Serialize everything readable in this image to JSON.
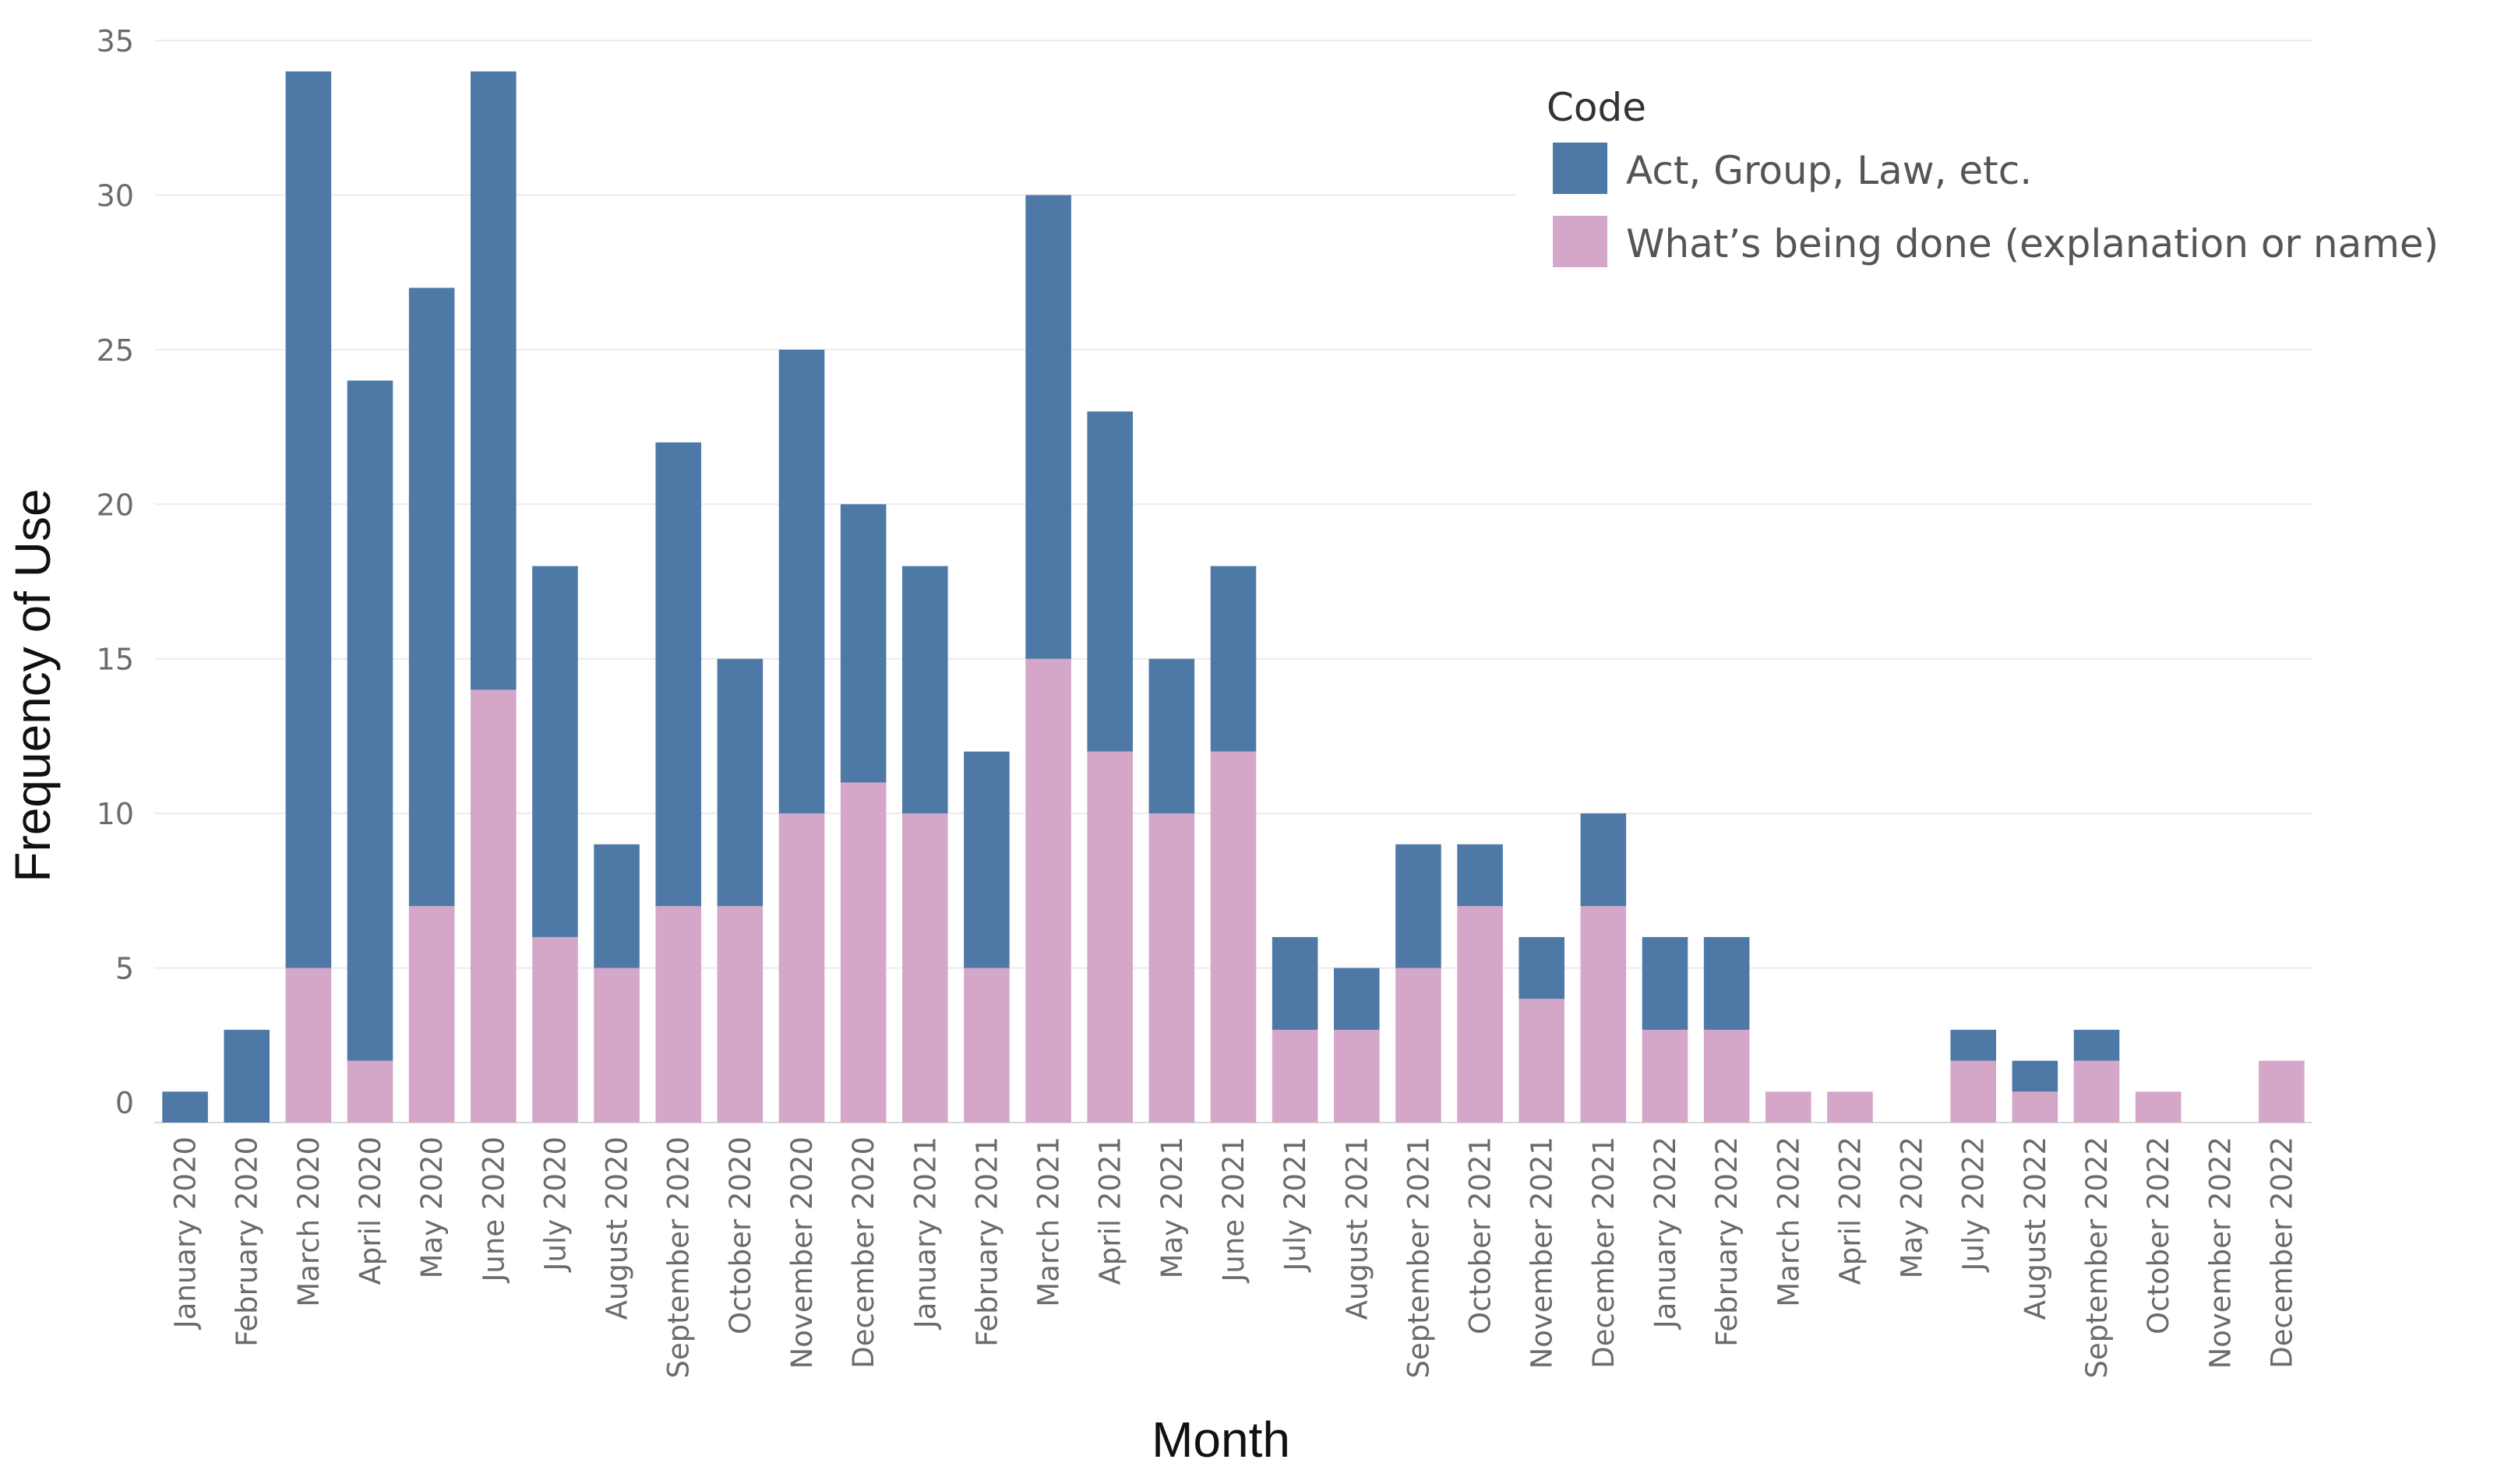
{
  "chart_data": {
    "type": "bar",
    "stacked": true,
    "xlabel": "Month",
    "ylabel": "Frequency of Use",
    "ylim": [
      0,
      35
    ],
    "yticks": [
      "35",
      "30",
      "25",
      "20",
      "15",
      "10",
      "5",
      "0"
    ],
    "grid": "horizontal",
    "legend": {
      "title": "Code",
      "placement": "top-right"
    },
    "categories": [
      "January 2020",
      "February 2020",
      "March 2020",
      "April 2020",
      "May 2020",
      "June 2020",
      "July 2020",
      "August 2020",
      "September 2020",
      "October 2020",
      "November 2020",
      "December 2020",
      "January 2021",
      "February 2021",
      "March 2021",
      "April 2021",
      "May 2021",
      "June 2021",
      "July 2021",
      "August 2021",
      "September 2021",
      "October 2021",
      "November 2021",
      "December 2021",
      "January 2022",
      "February 2022",
      "March 2022",
      "April 2022",
      "May 2022",
      "July 2022",
      "August 2022",
      "September 2022",
      "October 2022",
      "November 2022",
      "December 2022"
    ],
    "series": [
      {
        "name": "What’s being done (explanation or name)",
        "color": "#d4a6c8",
        "values": [
          0,
          0,
          5,
          2,
          7,
          14,
          6,
          5,
          7,
          7,
          10,
          11,
          10,
          5,
          15,
          12,
          10,
          12,
          3,
          3,
          5,
          7,
          4,
          7,
          3,
          3,
          1,
          1,
          0,
          2,
          1,
          2,
          1,
          0,
          2
        ]
      },
      {
        "name": "Act, Group, Law, etc.",
        "color": "#4e79a7",
        "values": [
          1,
          3,
          29,
          22,
          20,
          20,
          12,
          4,
          15,
          8,
          15,
          9,
          8,
          7,
          15,
          11,
          5,
          6,
          3,
          2,
          4,
          2,
          2,
          3,
          3,
          3,
          0,
          0,
          0,
          1,
          1,
          1,
          0,
          0,
          0
        ]
      }
    ]
  }
}
